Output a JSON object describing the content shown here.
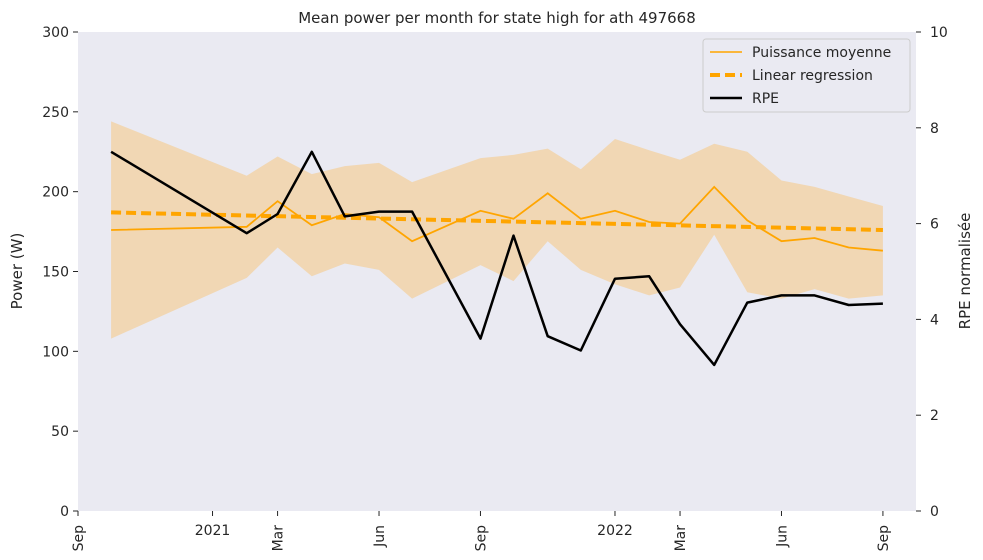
{
  "chart_data": {
    "type": "line",
    "title": "Mean power per month for state high for ath 497668",
    "ylabel": "Power (W)",
    "y2label": "RPE normalisée",
    "ylim": [
      0,
      300
    ],
    "y2lim": [
      0,
      10
    ],
    "yticks": [
      "0",
      "50",
      "100",
      "150",
      "200",
      "250",
      "300"
    ],
    "y2ticks": [
      "0",
      "2",
      "4",
      "6",
      "8",
      "10"
    ],
    "xlim": [
      "2020-09-01",
      "2022-10-01"
    ],
    "xticks": [
      {
        "date": "2020-09-01",
        "label": "Sep",
        "rotated": true
      },
      {
        "date": "2021-01-01",
        "label": "2021",
        "rotated": false
      },
      {
        "date": "2021-03-01",
        "label": "Mar",
        "rotated": true
      },
      {
        "date": "2021-06-01",
        "label": "Jun",
        "rotated": true
      },
      {
        "date": "2021-09-01",
        "label": "Sep",
        "rotated": true
      },
      {
        "date": "2022-01-01",
        "label": "2022",
        "rotated": false
      },
      {
        "date": "2022-03-01",
        "label": "Mar",
        "rotated": true
      },
      {
        "date": "2022-06-01",
        "label": "Jun",
        "rotated": true
      },
      {
        "date": "2022-09-01",
        "label": "Sep",
        "rotated": true
      }
    ],
    "grid": false,
    "legend_position": "top-right",
    "colors": {
      "power": "#ffa500",
      "band": "#f5c98b",
      "regression": "#ffa500",
      "rpe": "#000000",
      "plot_bg": "#eaeaf2"
    },
    "series": [
      {
        "name": "Puissance moyenne",
        "axis": "left",
        "x": [
          "2020-10-01",
          "2021-02-01",
          "2021-03-01",
          "2021-04-01",
          "2021-05-01",
          "2021-06-01",
          "2021-07-01",
          "2021-09-01",
          "2021-10-01",
          "2021-11-01",
          "2021-12-01",
          "2022-01-01",
          "2022-02-01",
          "2022-03-01",
          "2022-04-01",
          "2022-05-01",
          "2022-06-01",
          "2022-07-01",
          "2022-08-01",
          "2022-09-01"
        ],
        "y": [
          176,
          178,
          194,
          179,
          186,
          184,
          169,
          188,
          183,
          199,
          183,
          188,
          181,
          180,
          203,
          182,
          169,
          171,
          165,
          163
        ],
        "band_upper": [
          244,
          210,
          222,
          211,
          216,
          218,
          206,
          221,
          223,
          227,
          214,
          233,
          226,
          220,
          230,
          225,
          207,
          203,
          197,
          191
        ],
        "band_lower": [
          108,
          146,
          165,
          147,
          155,
          151,
          133,
          154,
          144,
          169,
          151,
          142,
          135,
          140,
          173,
          137,
          133,
          139,
          133,
          135
        ]
      },
      {
        "name": "Linear regression",
        "axis": "left",
        "x": [
          "2020-10-01",
          "2022-09-01"
        ],
        "y": [
          187,
          176
        ]
      },
      {
        "name": "RPE",
        "axis": "right",
        "x": [
          "2020-10-01",
          "2021-02-01",
          "2021-03-01",
          "2021-04-01",
          "2021-05-01",
          "2021-06-01",
          "2021-07-01",
          "2021-09-01",
          "2021-10-01",
          "2021-11-01",
          "2021-12-01",
          "2022-01-01",
          "2022-02-01",
          "2022-03-01",
          "2022-04-01",
          "2022-05-01",
          "2022-06-01",
          "2022-07-01",
          "2022-08-01",
          "2022-09-01"
        ],
        "y": [
          7.5,
          5.8,
          6.2,
          7.5,
          6.15,
          6.25,
          6.25,
          3.6,
          5.75,
          3.65,
          3.35,
          4.85,
          4.9,
          3.9,
          3.05,
          4.35,
          4.5,
          4.5,
          4.3,
          4.33
        ]
      }
    ]
  }
}
